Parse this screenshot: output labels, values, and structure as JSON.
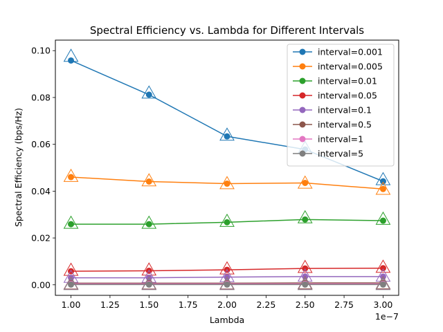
{
  "chart_data": {
    "type": "line",
    "title": "Spectral Efficiency vs. Lambda for Different Intervals",
    "xlabel": "Lambda",
    "ylabel": "Spectral Efficiency (bps/Hz)",
    "x_offset_text": "1e−7",
    "x": [
      1e-07,
      1.5e-07,
      2e-07,
      2.5e-07,
      3e-07
    ],
    "xlim": [
      9e-08,
      3.1e-07
    ],
    "ylim": [
      -0.0045,
      0.1045
    ],
    "x_ticks": [
      1e-07,
      1.25e-07,
      1.5e-07,
      1.75e-07,
      2e-07,
      2.25e-07,
      2.5e-07,
      2.75e-07,
      3e-07
    ],
    "x_tick_labels": [
      "1.00",
      "1.25",
      "1.50",
      "1.75",
      "2.00",
      "2.25",
      "2.50",
      "2.75",
      "3.00"
    ],
    "y_ticks": [
      0.0,
      0.02,
      0.04,
      0.06,
      0.08,
      0.1
    ],
    "y_tick_labels": [
      "0.00",
      "0.02",
      "0.04",
      "0.06",
      "0.08",
      "0.10"
    ],
    "grid": false,
    "legend_position": "top-right",
    "series": [
      {
        "name": "interval=0.001",
        "color": "#1f77b4",
        "values": [
          0.0958,
          0.0812,
          0.0634,
          0.0578,
          0.0442
        ],
        "triangle_values": [
          0.0975,
          0.0818,
          0.0638,
          0.0582,
          0.0448
        ]
      },
      {
        "name": "interval=0.005",
        "color": "#ff7f0e",
        "values": [
          0.046,
          0.0441,
          0.0432,
          0.0435,
          0.0409
        ],
        "triangle_values": [
          0.0462,
          0.0443,
          0.0431,
          0.0433,
          0.0407
        ]
      },
      {
        "name": "interval=0.01",
        "color": "#2ca02c",
        "values": [
          0.0259,
          0.0259,
          0.0267,
          0.0279,
          0.0274
        ],
        "triangle_values": [
          0.0262,
          0.0262,
          0.027,
          0.0285,
          0.0279
        ]
      },
      {
        "name": "interval=0.05",
        "color": "#d62728",
        "values": [
          0.0058,
          0.006,
          0.0064,
          0.007,
          0.0071
        ],
        "triangle_values": [
          0.0061,
          0.0062,
          0.0067,
          0.0073,
          0.0074
        ]
      },
      {
        "name": "interval=0.1",
        "color": "#9467bd",
        "values": [
          0.003,
          0.003,
          0.0033,
          0.0035,
          0.0035
        ],
        "triangle_values": [
          0.0031,
          0.0031,
          0.0034,
          0.0036,
          0.0036
        ]
      },
      {
        "name": "interval=0.5",
        "color": "#8c564b",
        "values": [
          0.0007,
          0.0007,
          0.0007,
          0.0008,
          0.0008
        ],
        "triangle_values": [
          0.0003,
          0.0003,
          0.0003,
          0.0004,
          0.0004
        ]
      },
      {
        "name": "interval=1",
        "color": "#e377c2",
        "values": [
          0.0004,
          0.0004,
          0.0004,
          0.0004,
          0.0004
        ],
        "triangle_values": [
          0.0001,
          0.0001,
          0.0001,
          0.0001,
          0.0001
        ]
      },
      {
        "name": "interval=5",
        "color": "#7f7f7f",
        "values": [
          0.0001,
          0.0001,
          0.0001,
          0.0001,
          0.0001
        ],
        "triangle_values": [
          0.0,
          0.0,
          0.0,
          0.0,
          0.0
        ]
      }
    ]
  }
}
